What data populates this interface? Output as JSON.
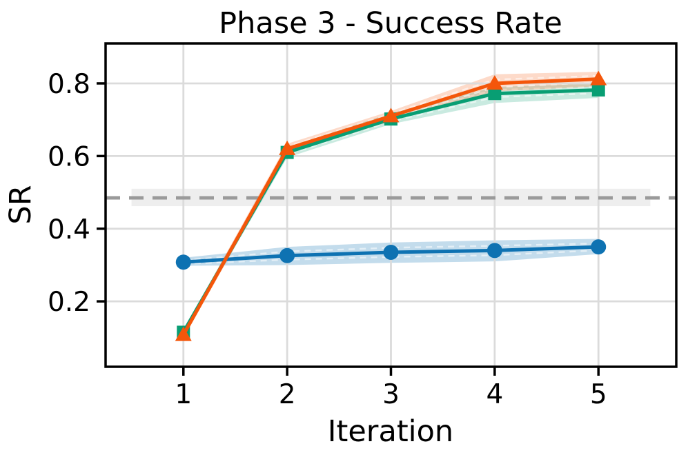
{
  "figure": {
    "background": "#ffffff"
  },
  "chart_data": {
    "type": "line",
    "title": "Phase 3 - Success Rate",
    "xlabel": "Iteration",
    "ylabel": "SR",
    "x": [
      1,
      2,
      3,
      4,
      5
    ],
    "xtick_labels": [
      "1",
      "2",
      "3",
      "4",
      "5"
    ],
    "yticks": [
      0.2,
      0.4,
      0.6,
      0.8
    ],
    "ytick_labels": [
      "0.2",
      "0.4",
      "0.6",
      "0.8"
    ],
    "xlim": [
      0.25,
      5.75
    ],
    "ylim": [
      0.02,
      0.91
    ],
    "grid": true,
    "grid_color": "#dbdbdb",
    "legend": "none",
    "series": [
      {
        "name": "blue-circles",
        "marker": "circle",
        "color": "#0e72b2",
        "band_color": "rgba(14,114,178,0.25)",
        "values": [
          0.308,
          0.326,
          0.335,
          0.34,
          0.35
        ],
        "band_lower": [
          0.298,
          0.3,
          0.306,
          0.31,
          0.33
        ],
        "band_upper": [
          0.32,
          0.35,
          0.362,
          0.368,
          0.372
        ]
      },
      {
        "name": "green-squares",
        "marker": "square",
        "color": "#089e73",
        "band_color": "rgba(8,158,115,0.22)",
        "values": [
          0.115,
          0.61,
          0.702,
          0.772,
          0.782
        ],
        "band_lower": [
          0.106,
          0.596,
          0.688,
          0.746,
          0.76
        ],
        "band_upper": [
          0.124,
          0.624,
          0.718,
          0.79,
          0.8
        ]
      },
      {
        "name": "orange-triangles",
        "marker": "triangle-up",
        "color": "#f4560a",
        "band_color": "rgba(244,86,10,0.22)",
        "values": [
          0.108,
          0.62,
          0.71,
          0.8,
          0.812
        ],
        "band_lower": [
          0.098,
          0.606,
          0.696,
          0.778,
          0.792
        ],
        "band_upper": [
          0.12,
          0.634,
          0.724,
          0.825,
          0.832
        ]
      }
    ],
    "baseline": {
      "value": 0.485,
      "band": [
        0.462,
        0.51
      ],
      "x_range": [
        0.5,
        5.5
      ],
      "style": "dashed",
      "color": "#9a9a9a",
      "band_color": "rgba(0,0,0,0.065)"
    }
  }
}
